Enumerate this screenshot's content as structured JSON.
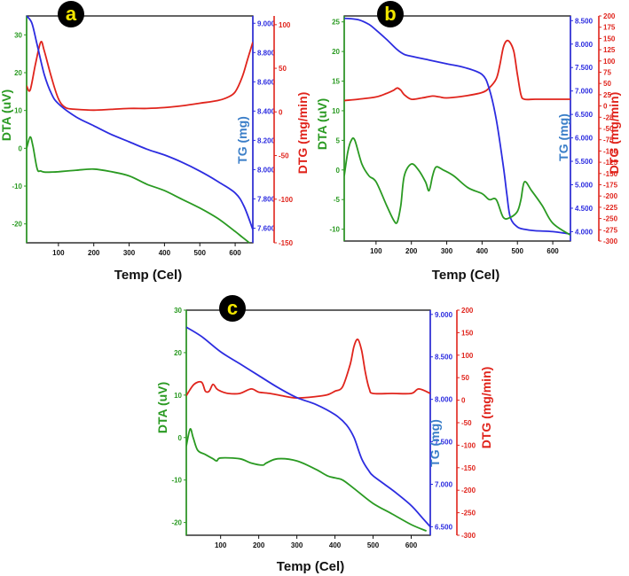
{
  "colors": {
    "dta": "#2a9a22",
    "tg": "#2c2ce0",
    "dtg": "#e0241c",
    "frame": "#111111",
    "badge_bg": "#000000",
    "badge_text": "#f2e600",
    "tg_label": "#3a7ec8"
  },
  "chart_data": [
    {
      "id": "a",
      "type": "line",
      "panel_label": "a",
      "xlabel": "Temp (Cel)",
      "xlim": [
        10,
        650
      ],
      "xticks": [
        "100",
        "200",
        "300",
        "400",
        "500",
        "600"
      ],
      "xtick_values": [
        100,
        200,
        300,
        400,
        500,
        600
      ],
      "dta": {
        "label": "DTA (uV)",
        "ylim": [
          -25,
          35
        ],
        "ticks": [
          "30",
          "20",
          "10",
          "0",
          "-10",
          "-20"
        ],
        "tick_values": [
          30,
          20,
          10,
          0,
          -10,
          -20
        ],
        "x": [
          10,
          20,
          28,
          40,
          50,
          60,
          80,
          100,
          150,
          200,
          250,
          300,
          350,
          400,
          450,
          500,
          550,
          600,
          620,
          640
        ],
        "y": [
          0,
          3,
          0.5,
          -5.5,
          -6,
          -6.3,
          -6.3,
          -6.2,
          -5.8,
          -5.5,
          -6.2,
          -7.3,
          -9.5,
          -11.2,
          -13.5,
          -15.8,
          -18.5,
          -22,
          -23.5,
          -25
        ]
      },
      "tg": {
        "label": "TG (mg)",
        "ylim": [
          7.5,
          9.05
        ],
        "ticks": [
          "9.000",
          "8.800",
          "8.600",
          "8.400",
          "8.200",
          "8.000",
          "7.800",
          "7.600"
        ],
        "tick_values": [
          9.0,
          8.8,
          8.6,
          8.4,
          8.2,
          8.0,
          7.8,
          7.6
        ],
        "x": [
          10,
          25,
          40,
          60,
          80,
          100,
          150,
          200,
          250,
          300,
          350,
          400,
          450,
          500,
          550,
          600,
          625,
          650
        ],
        "y": [
          9.05,
          9.0,
          8.85,
          8.65,
          8.52,
          8.45,
          8.36,
          8.3,
          8.24,
          8.19,
          8.14,
          8.1,
          8.05,
          7.99,
          7.92,
          7.84,
          7.75,
          7.59
        ]
      },
      "dtg": {
        "label": "DTG (mg/min)",
        "ylim": [
          -150,
          110
        ],
        "ticks": [
          "100",
          "50",
          "0",
          "-50",
          "-100",
          "-150"
        ],
        "tick_values": [
          100,
          50,
          0,
          -50,
          -100,
          -150
        ],
        "x": [
          10,
          20,
          35,
          50,
          60,
          80,
          100,
          120,
          150,
          200,
          250,
          300,
          350,
          400,
          450,
          500,
          550,
          580,
          600,
          620,
          635,
          650
        ],
        "y": [
          30,
          25,
          55,
          80,
          70,
          40,
          15,
          5,
          3,
          2,
          3,
          4,
          4,
          5,
          7,
          10,
          13,
          17,
          23,
          40,
          60,
          80
        ]
      }
    },
    {
      "id": "b",
      "type": "line",
      "panel_label": "b",
      "xlabel": "Temp (Cel)",
      "xlim": [
        10,
        650
      ],
      "xticks": [
        "100",
        "200",
        "300",
        "400",
        "500",
        "600"
      ],
      "xtick_values": [
        100,
        200,
        300,
        400,
        500,
        600
      ],
      "dta": {
        "label": "DTA (uV)",
        "ylim": [
          -12,
          26
        ],
        "ticks": [
          "25",
          "20",
          "15",
          "10",
          "5",
          "0",
          "-5",
          "-10"
        ],
        "tick_values": [
          25,
          20,
          15,
          10,
          5,
          0,
          -5,
          -10
        ],
        "x": [
          10,
          20,
          30,
          40,
          60,
          80,
          100,
          130,
          150,
          160,
          170,
          180,
          200,
          220,
          240,
          250,
          260,
          270,
          290,
          320,
          360,
          400,
          420,
          440,
          460,
          480,
          500,
          510,
          520,
          540,
          570,
          600,
          650
        ],
        "y": [
          -1,
          3,
          5,
          5,
          1,
          -1,
          -2,
          -6,
          -8.5,
          -8.8,
          -6,
          -1,
          1,
          0,
          -2,
          -3.5,
          -1,
          0.5,
          0,
          -1,
          -3,
          -4,
          -5,
          -5,
          -8,
          -8,
          -7,
          -5,
          -2,
          -3.5,
          -6,
          -9,
          -11
        ]
      },
      "tg": {
        "label": "TG (mg)",
        "ylim": [
          3.8,
          8.6
        ],
        "ticks": [
          "8.500",
          "8.000",
          "7.500",
          "7.000",
          "6.500",
          "6.000",
          "5.500",
          "5.000",
          "4.500",
          "4.000"
        ],
        "tick_values": [
          8.5,
          8.0,
          7.5,
          7.0,
          6.5,
          6.0,
          5.5,
          5.0,
          4.5,
          4.0
        ],
        "x": [
          10,
          50,
          80,
          100,
          130,
          160,
          180,
          200,
          250,
          300,
          350,
          400,
          420,
          440,
          460,
          470,
          480,
          500,
          520,
          550,
          600,
          650
        ],
        "y": [
          8.55,
          8.52,
          8.42,
          8.3,
          8.1,
          7.88,
          7.78,
          7.74,
          7.66,
          7.58,
          7.5,
          7.35,
          7.05,
          6.4,
          5.4,
          4.8,
          4.3,
          4.1,
          4.05,
          4.02,
          4.0,
          3.95
        ]
      },
      "dtg": {
        "label": "DTG (mg/min)",
        "ylim": [
          -300,
          200
        ],
        "ticks": [
          "200",
          "175",
          "150",
          "125",
          "100",
          "75",
          "50",
          "25",
          "0",
          "-25",
          "-50",
          "-75",
          "-100",
          "-125",
          "-150",
          "-175",
          "-200",
          "-225",
          "-250",
          "-275",
          "-300"
        ],
        "tick_values": [
          200,
          175,
          150,
          125,
          100,
          75,
          50,
          25,
          0,
          -25,
          -50,
          -75,
          -100,
          -125,
          -150,
          -175,
          -200,
          -225,
          -250,
          -275,
          -300
        ],
        "x": [
          10,
          50,
          100,
          130,
          150,
          160,
          170,
          180,
          200,
          230,
          260,
          280,
          300,
          350,
          400,
          420,
          440,
          450,
          460,
          470,
          480,
          490,
          500,
          510,
          520,
          550,
          600,
          650
        ],
        "y": [
          12,
          15,
          20,
          28,
          35,
          40,
          35,
          25,
          15,
          18,
          22,
          20,
          18,
          22,
          30,
          40,
          60,
          90,
          130,
          145,
          140,
          120,
          70,
          25,
          15,
          15,
          15,
          15
        ]
      }
    },
    {
      "id": "c",
      "type": "line",
      "panel_label": "c",
      "xlabel": "Temp (Cel)",
      "xlim": [
        10,
        650
      ],
      "xticks": [
        "100",
        "200",
        "300",
        "400",
        "500",
        "600"
      ],
      "xtick_values": [
        100,
        200,
        300,
        400,
        500,
        600
      ],
      "dta": {
        "label": "DTA (uV)",
        "ylim": [
          -23,
          30
        ],
        "ticks": [
          "30",
          "20",
          "10",
          "0",
          "-10",
          "-20"
        ],
        "tick_values": [
          30,
          20,
          10,
          0,
          -10,
          -20
        ],
        "x": [
          10,
          20,
          28,
          40,
          60,
          80,
          90,
          100,
          150,
          180,
          210,
          220,
          250,
          300,
          350,
          380,
          400,
          420,
          450,
          500,
          550,
          600,
          640
        ],
        "y": [
          -2,
          2,
          0,
          -3,
          -4,
          -5,
          -5.5,
          -4.8,
          -5,
          -6,
          -6.5,
          -6,
          -5,
          -5.5,
          -7.5,
          -9,
          -9.5,
          -10,
          -12,
          -15.5,
          -18,
          -20.5,
          -22
        ]
      },
      "tg": {
        "label": "TG (mg)",
        "ylim": [
          6.4,
          9.05
        ],
        "ticks": [
          "9.000",
          "8.500",
          "8.000",
          "7.500",
          "7.000",
          "6.500"
        ],
        "tick_values": [
          9.0,
          8.5,
          8.0,
          7.5,
          7.0,
          6.5
        ],
        "x": [
          10,
          50,
          100,
          150,
          200,
          250,
          300,
          350,
          400,
          430,
          450,
          470,
          490,
          500,
          530,
          560,
          600,
          630,
          650
        ],
        "y": [
          8.85,
          8.74,
          8.56,
          8.42,
          8.28,
          8.14,
          8.02,
          7.94,
          7.82,
          7.7,
          7.55,
          7.3,
          7.15,
          7.1,
          7.0,
          6.9,
          6.75,
          6.6,
          6.5
        ]
      },
      "dtg": {
        "label": "DTG (mg/min)",
        "ylim": [
          -300,
          200
        ],
        "ticks": [
          "200",
          "150",
          "100",
          "50",
          "0",
          "-50",
          "-100",
          "-150",
          "-200",
          "-250",
          "-300"
        ],
        "tick_values": [
          200,
          150,
          100,
          50,
          0,
          -50,
          -100,
          -150,
          -200,
          -250,
          -300
        ],
        "x": [
          10,
          30,
          50,
          60,
          70,
          80,
          90,
          100,
          120,
          150,
          180,
          200,
          230,
          260,
          300,
          350,
          380,
          400,
          420,
          440,
          450,
          460,
          470,
          480,
          490,
          500,
          550,
          600,
          620,
          650
        ],
        "y": [
          10,
          35,
          40,
          20,
          20,
          35,
          25,
          20,
          15,
          15,
          25,
          18,
          15,
          10,
          5,
          8,
          12,
          20,
          30,
          80,
          120,
          135,
          110,
          60,
          25,
          15,
          15,
          15,
          25,
          15
        ]
      }
    }
  ]
}
